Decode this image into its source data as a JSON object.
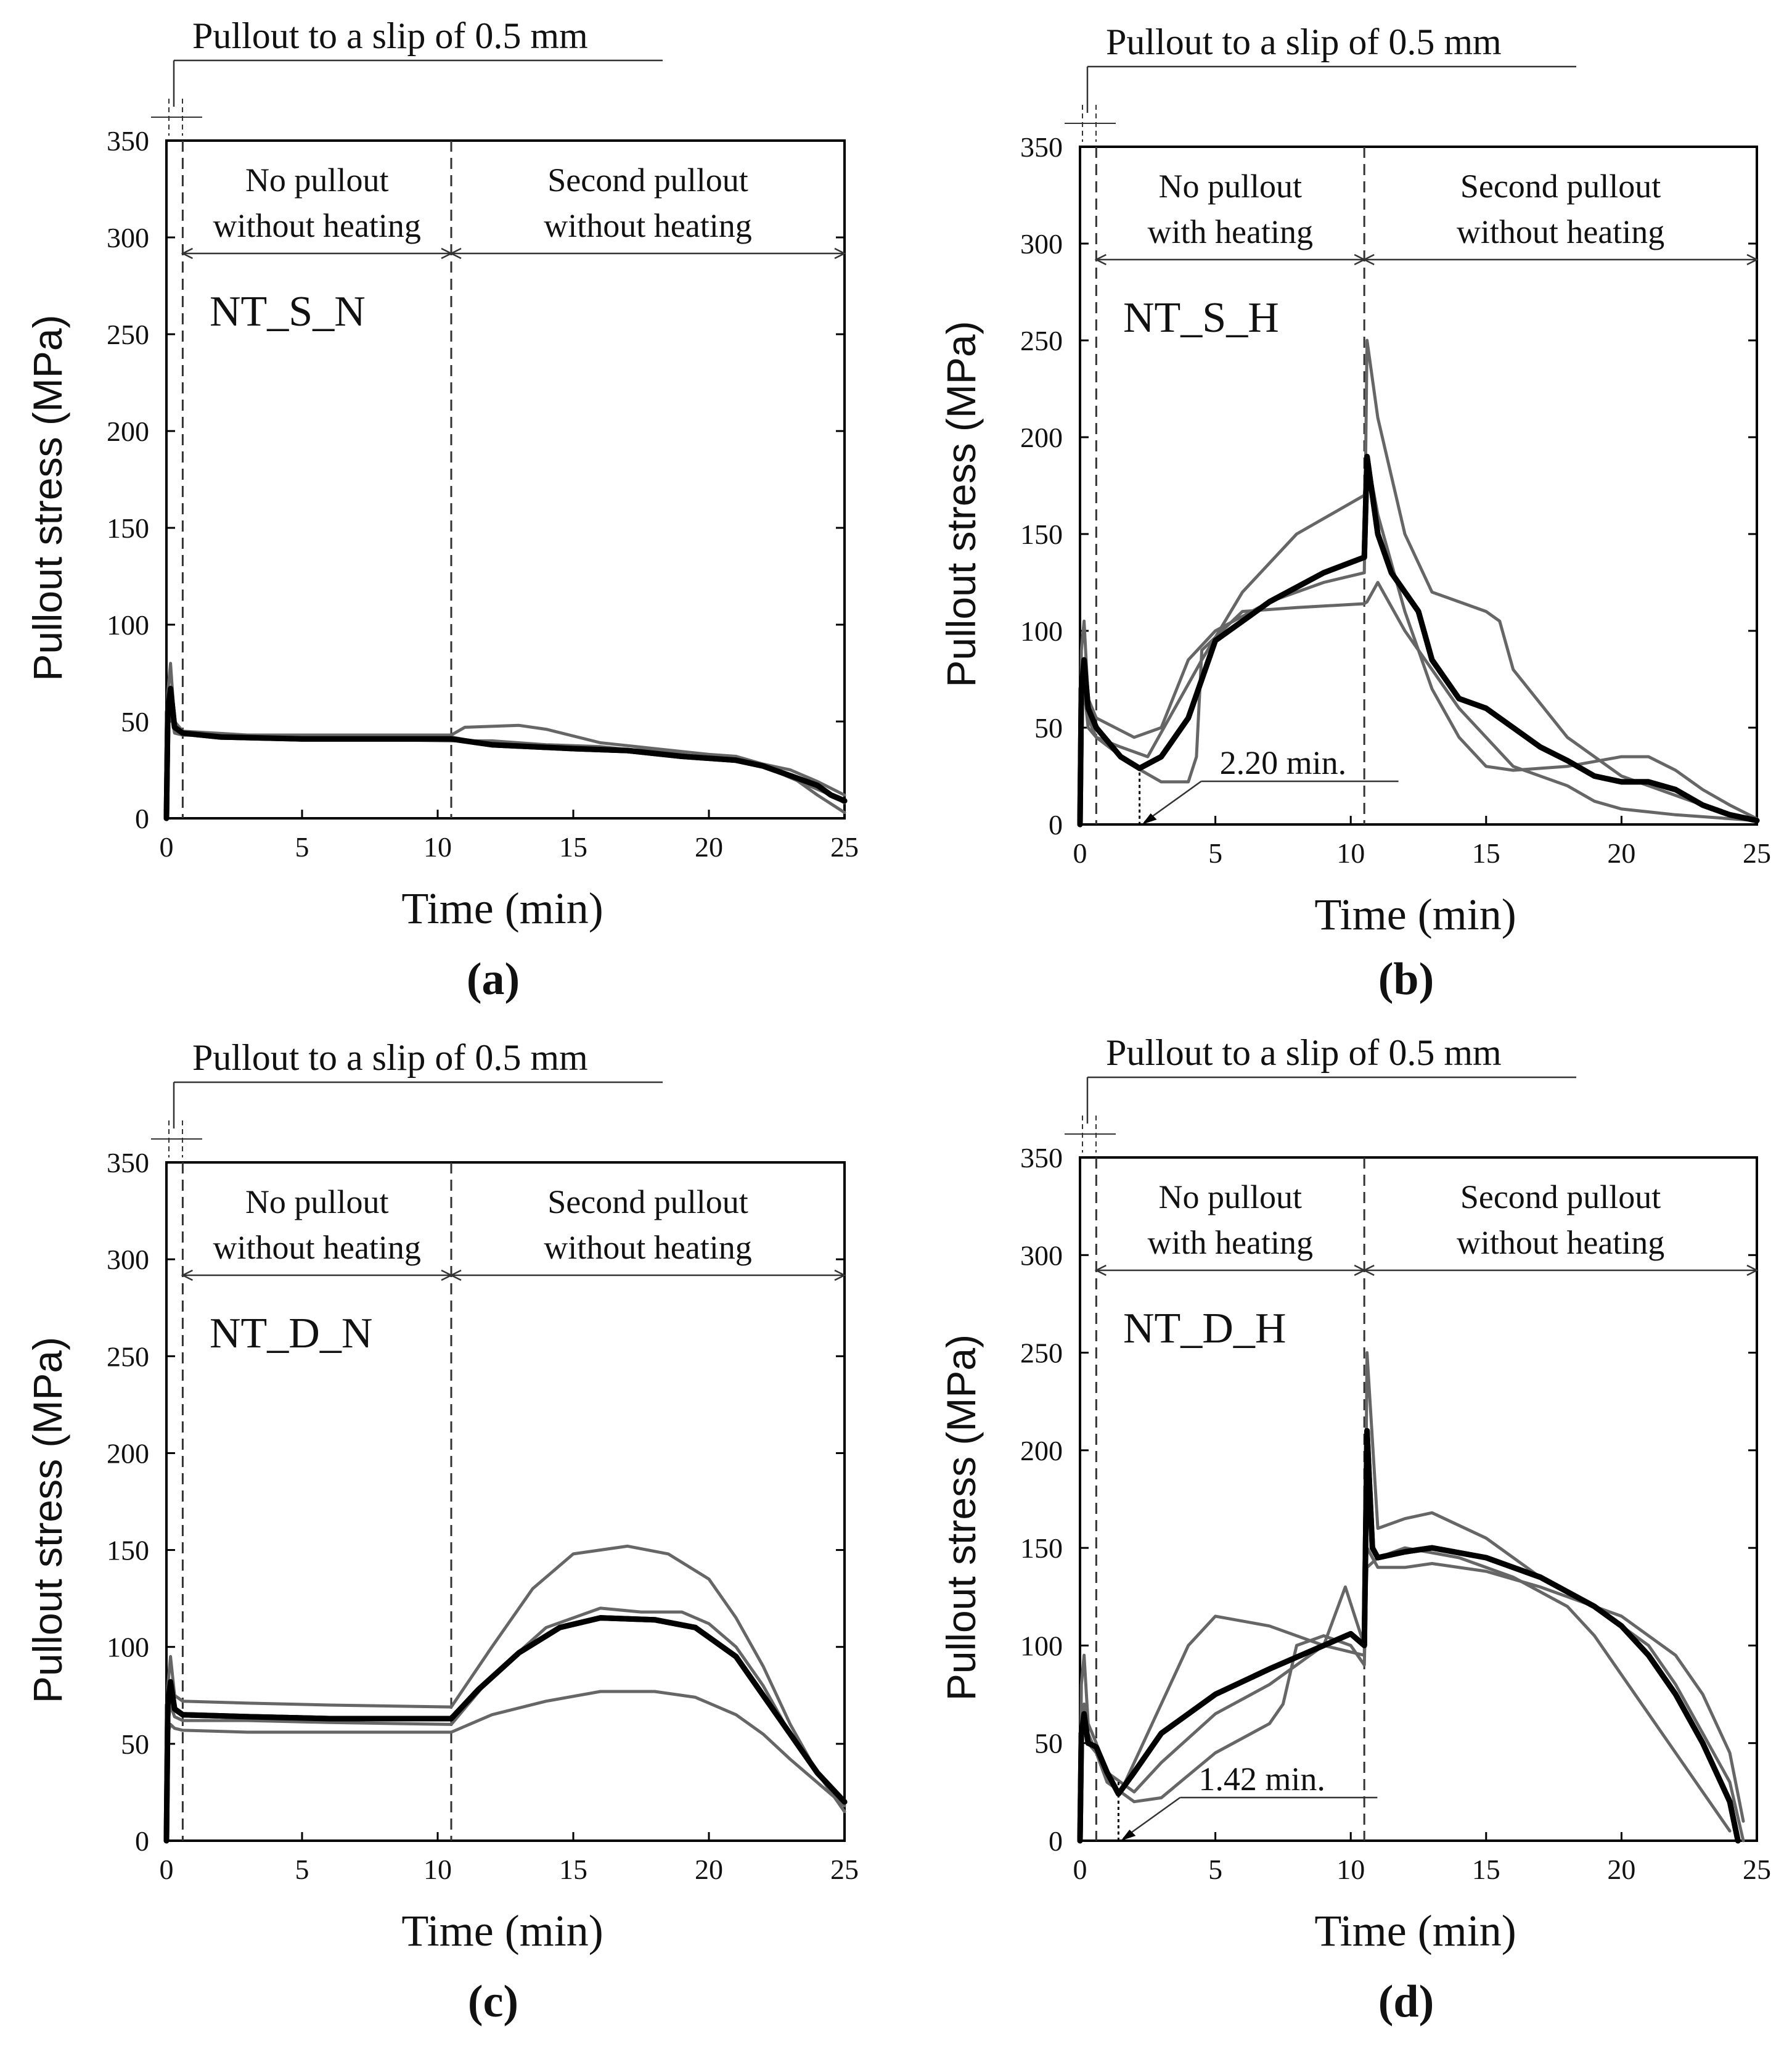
{
  "figure": {
    "layout": "2x2 grid of line charts",
    "bracket_title": "Pullout to a slip of 0.5 mm",
    "colors": {
      "mean_line": "#000000",
      "specimen_lines": "#666666",
      "text": "#111111"
    }
  },
  "chart_data": [
    {
      "type": "line",
      "panel_label_letter": "a",
      "panel_label": "(a)",
      "name": "NT_S_N",
      "xlabel": "Time (min)",
      "ylabel": "Pullout  stress (MPa)",
      "xlim": [
        0,
        25
      ],
      "ylim": [
        0,
        350
      ],
      "xticks": [
        0,
        5,
        10,
        15,
        20,
        25
      ],
      "yticks": [
        0,
        50,
        100,
        150,
        200,
        250,
        300,
        350
      ],
      "phase_boundaries": [
        0.6,
        10.5
      ],
      "phases": [
        {
          "line1": "No pullout",
          "line2": "without heating"
        },
        {
          "line1": "Second pullout",
          "line2": "without heating"
        }
      ],
      "annotation": null,
      "series": [
        {
          "name": "mean",
          "style": "bold-black",
          "x": [
            0,
            0.05,
            0.15,
            0.3,
            0.6,
            2,
            5,
            8,
            10.5,
            12,
            15,
            17,
            19,
            21,
            22,
            23,
            24,
            24.5,
            25
          ],
          "y": [
            0,
            55,
            67,
            47,
            44,
            42,
            41,
            41,
            41,
            38,
            36,
            35,
            32,
            30,
            27,
            22,
            17,
            12,
            9
          ]
        },
        {
          "name": "specimen-1",
          "style": "thin-grey",
          "x": [
            0,
            0.05,
            0.15,
            0.3,
            0.6,
            3,
            6,
            10.5,
            11,
            13,
            14,
            16,
            18,
            20,
            21,
            22,
            23,
            24,
            25
          ],
          "y": [
            0,
            65,
            80,
            50,
            45,
            43,
            43,
            43,
            47,
            48,
            46,
            39,
            36,
            33,
            32,
            28,
            25,
            19,
            12
          ]
        },
        {
          "name": "specimen-2",
          "style": "thin-grey",
          "x": [
            0,
            0.05,
            0.15,
            0.3,
            0.6,
            3,
            6,
            10.5,
            12,
            14,
            16,
            18,
            20,
            21.5,
            22.5,
            23.5,
            24.5,
            25
          ],
          "y": [
            0,
            45,
            55,
            44,
            43,
            42,
            42,
            42,
            38,
            36,
            36,
            35,
            31,
            29,
            24,
            18,
            12,
            8
          ]
        },
        {
          "name": "specimen-3",
          "style": "thin-grey",
          "x": [
            0,
            0.05,
            0.15,
            0.3,
            0.6,
            3,
            6,
            10.5,
            12,
            14,
            16,
            18,
            20,
            21,
            22,
            23,
            24,
            25
          ],
          "y": [
            0,
            50,
            60,
            46,
            44,
            42,
            41,
            40,
            40,
            38,
            37,
            34,
            31,
            30,
            27,
            22,
            12,
            3
          ]
        }
      ]
    },
    {
      "type": "line",
      "panel_label_letter": "b",
      "panel_label": "(b)",
      "name": "NT_S_H",
      "xlabel": "Time (min)",
      "ylabel": "Pullout  stress (MPa)",
      "xlim": [
        0,
        25
      ],
      "ylim": [
        0,
        350
      ],
      "xticks": [
        0,
        5,
        10,
        15,
        20,
        25
      ],
      "yticks": [
        0,
        50,
        100,
        150,
        200,
        250,
        300,
        350
      ],
      "phase_boundaries": [
        0.6,
        10.5
      ],
      "phases": [
        {
          "line1": "No pullout",
          "line2": "with heating"
        },
        {
          "line1": "Second pullout",
          "line2": "without heating"
        }
      ],
      "annotation": {
        "text": "2.20 min.",
        "x": 2.2
      },
      "series": [
        {
          "name": "mean",
          "style": "bold-black",
          "x": [
            0,
            0.05,
            0.15,
            0.3,
            0.6,
            1.5,
            2.2,
            3,
            4,
            5,
            7,
            9,
            10.5,
            10.6,
            11,
            11.5,
            12.5,
            13,
            14,
            15,
            16,
            17,
            18,
            19,
            20,
            21,
            22,
            23,
            24,
            25
          ],
          "y": [
            0,
            70,
            85,
            60,
            50,
            35,
            29,
            35,
            55,
            95,
            115,
            130,
            138,
            190,
            150,
            130,
            110,
            85,
            65,
            60,
            50,
            40,
            33,
            25,
            22,
            22,
            18,
            10,
            5,
            2
          ]
        },
        {
          "name": "specimen-1",
          "style": "thin-grey",
          "x": [
            0,
            0.05,
            0.15,
            0.3,
            0.6,
            2,
            3,
            4,
            5,
            7,
            9,
            10.5,
            10.6,
            11,
            12,
            13,
            14,
            15,
            15.5,
            16,
            18,
            20,
            22,
            24,
            25
          ],
          "y": [
            0,
            90,
            105,
            65,
            55,
            45,
            50,
            85,
            100,
            115,
            125,
            130,
            250,
            210,
            150,
            120,
            115,
            110,
            105,
            80,
            45,
            25,
            15,
            5,
            2
          ]
        },
        {
          "name": "specimen-2",
          "style": "thin-grey",
          "x": [
            0,
            0.05,
            0.15,
            0.3,
            0.6,
            2,
            3,
            4,
            4.3,
            4.5,
            6,
            8,
            10.5,
            10.6,
            11,
            12,
            13,
            14,
            16,
            18,
            19,
            20,
            22,
            24,
            25
          ],
          "y": [
            0,
            60,
            75,
            55,
            45,
            30,
            22,
            22,
            35,
            90,
            110,
            112,
            114,
            115,
            125,
            100,
            80,
            60,
            30,
            20,
            12,
            8,
            5,
            3,
            2
          ]
        },
        {
          "name": "specimen-3",
          "style": "thin-grey",
          "x": [
            0,
            0.05,
            0.15,
            0.3,
            0.6,
            1.5,
            2.5,
            3.5,
            4.5,
            6,
            8,
            10.5,
            10.6,
            11,
            12,
            13,
            14,
            15,
            16,
            18,
            20,
            21,
            22,
            23,
            24,
            25
          ],
          "y": [
            0,
            55,
            70,
            50,
            45,
            40,
            35,
            60,
            85,
            120,
            150,
            170,
            190,
            160,
            110,
            70,
            45,
            30,
            28,
            30,
            35,
            35,
            28,
            18,
            10,
            3
          ]
        }
      ]
    },
    {
      "type": "line",
      "panel_label_letter": "c",
      "panel_label": "(c)",
      "name": "NT_D_N",
      "xlabel": "Time (min)",
      "ylabel": "Pullout  stress (MPa)",
      "xlim": [
        0,
        25
      ],
      "ylim": [
        0,
        350
      ],
      "xticks": [
        0,
        5,
        10,
        15,
        20,
        25
      ],
      "yticks": [
        0,
        50,
        100,
        150,
        200,
        250,
        300,
        350
      ],
      "phase_boundaries": [
        0.6,
        10.5
      ],
      "phases": [
        {
          "line1": "No pullout",
          "line2": "without heating"
        },
        {
          "line1": "Second pullout",
          "line2": "without heating"
        }
      ],
      "annotation": null,
      "series": [
        {
          "name": "mean",
          "style": "bold-black",
          "x": [
            0,
            0.05,
            0.15,
            0.3,
            0.6,
            3,
            6,
            10.5,
            11.5,
            13,
            14.5,
            16,
            18,
            19.5,
            21,
            22,
            23,
            24,
            25
          ],
          "y": [
            0,
            70,
            82,
            68,
            65,
            64,
            63,
            63,
            78,
            97,
            110,
            115,
            114,
            110,
            95,
            75,
            55,
            35,
            20
          ]
        },
        {
          "name": "specimen-1",
          "style": "thin-grey",
          "x": [
            0,
            0.05,
            0.15,
            0.3,
            0.6,
            3,
            6,
            10.5,
            12,
            13.5,
            15,
            17,
            18.5,
            20,
            21,
            22,
            23,
            24,
            25
          ],
          "y": [
            0,
            80,
            95,
            75,
            72,
            71,
            70,
            69,
            100,
            130,
            148,
            152,
            148,
            135,
            115,
            90,
            60,
            35,
            15
          ]
        },
        {
          "name": "specimen-2",
          "style": "thin-grey",
          "x": [
            0,
            0.05,
            0.15,
            0.3,
            0.6,
            3,
            6,
            10.5,
            12,
            14,
            16,
            17.5,
            19,
            20,
            21,
            22,
            23,
            24,
            25
          ],
          "y": [
            0,
            60,
            70,
            64,
            62,
            62,
            61,
            60,
            85,
            110,
            120,
            118,
            118,
            112,
            100,
            80,
            55,
            35,
            20
          ]
        },
        {
          "name": "specimen-3",
          "style": "thin-grey",
          "x": [
            0,
            0.05,
            0.15,
            0.3,
            0.6,
            3,
            6,
            10.5,
            12,
            14,
            16,
            18,
            19.5,
            21,
            22,
            23,
            24,
            25
          ],
          "y": [
            0,
            55,
            60,
            58,
            57,
            56,
            56,
            56,
            65,
            72,
            77,
            77,
            74,
            65,
            55,
            42,
            30,
            18
          ]
        }
      ]
    },
    {
      "type": "line",
      "panel_label_letter": "d",
      "panel_label": "(d)",
      "name": "NT_D_H",
      "xlabel": "Time (min)",
      "ylabel": "Pullout  stress (MPa)",
      "xlim": [
        0,
        25
      ],
      "ylim": [
        0,
        350
      ],
      "xticks": [
        0,
        5,
        10,
        15,
        20,
        25
      ],
      "yticks": [
        0,
        50,
        100,
        150,
        200,
        250,
        300,
        350
      ],
      "phase_boundaries": [
        0.6,
        10.5
      ],
      "phases": [
        {
          "line1": "No pullout",
          "line2": "with heating"
        },
        {
          "line1": "Second pullout",
          "line2": "without heating"
        }
      ],
      "annotation": {
        "text": "1.42 min.",
        "x": 1.42
      },
      "series": [
        {
          "name": "mean",
          "style": "bold-black",
          "x": [
            0,
            0.05,
            0.15,
            0.3,
            0.6,
            1,
            1.42,
            2,
            3,
            5,
            7,
            9,
            10,
            10.5,
            10.6,
            10.8,
            11,
            12,
            13,
            15,
            17,
            19,
            20,
            21,
            22,
            23,
            24,
            24.3
          ],
          "y": [
            0,
            55,
            65,
            50,
            48,
            35,
            24,
            35,
            55,
            75,
            88,
            100,
            106,
            100,
            210,
            150,
            145,
            148,
            150,
            145,
            135,
            120,
            110,
            95,
            75,
            50,
            20,
            0
          ]
        },
        {
          "name": "specimen-1",
          "style": "thin-grey",
          "x": [
            0,
            0.05,
            0.15,
            0.3,
            0.6,
            1,
            1.5,
            2.5,
            4,
            5,
            7,
            9,
            10.5,
            10.6,
            11,
            12,
            13,
            15,
            17,
            19,
            21,
            22,
            23,
            24,
            24.5
          ],
          "y": [
            0,
            80,
            95,
            60,
            50,
            30,
            25,
            55,
            100,
            115,
            110,
            100,
            95,
            250,
            160,
            165,
            168,
            155,
            135,
            120,
            100,
            80,
            55,
            30,
            0
          ]
        },
        {
          "name": "specimen-2",
          "style": "thin-grey",
          "x": [
            0,
            0.05,
            0.15,
            0.3,
            0.6,
            1,
            2,
            3,
            5,
            7,
            7.5,
            8,
            9,
            10,
            10.5,
            10.6,
            11,
            12,
            13,
            15,
            17,
            19,
            20,
            21,
            22,
            23,
            24,
            24.5
          ],
          "y": [
            0,
            60,
            70,
            55,
            45,
            30,
            20,
            22,
            45,
            60,
            70,
            100,
            105,
            100,
            90,
            150,
            140,
            140,
            142,
            138,
            130,
            120,
            115,
            105,
            95,
            75,
            45,
            10
          ]
        },
        {
          "name": "specimen-3",
          "style": "thin-grey",
          "x": [
            0,
            0.05,
            0.15,
            0.3,
            0.6,
            1,
            2,
            3,
            5,
            7,
            9,
            9.8,
            10.5,
            10.6,
            11,
            12,
            14,
            16,
            18,
            19,
            20,
            21,
            22,
            23,
            24
          ],
          "y": [
            0,
            50,
            60,
            50,
            45,
            35,
            25,
            40,
            65,
            80,
            100,
            130,
            100,
            140,
            145,
            150,
            145,
            135,
            120,
            105,
            85,
            65,
            45,
            25,
            5
          ]
        }
      ]
    }
  ]
}
